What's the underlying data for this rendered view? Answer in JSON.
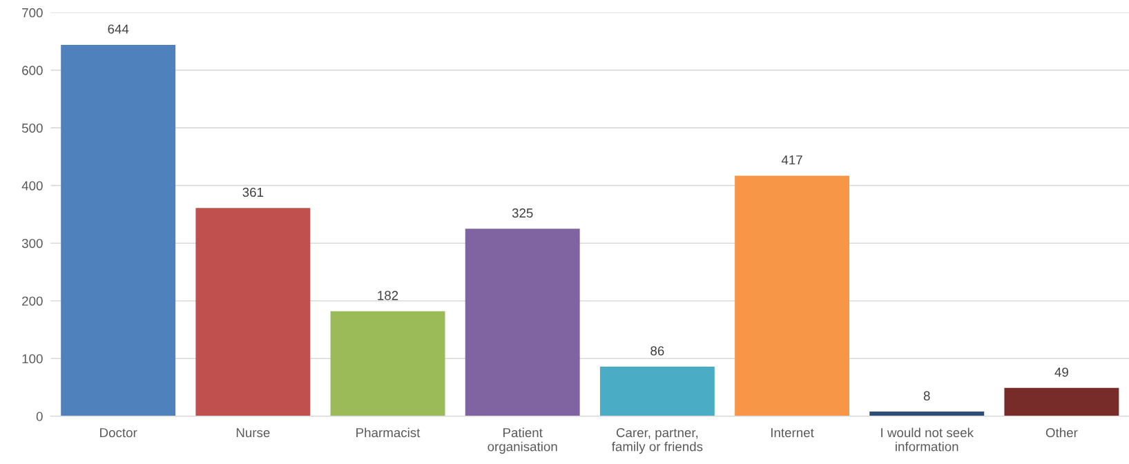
{
  "chart_data": {
    "type": "bar",
    "categories": [
      "Doctor",
      "Nurse",
      "Pharmacist",
      "Patient\norganisation",
      "Carer, partner,\nfamily or friends",
      "Internet",
      "I would not seek\ninformation",
      "Other"
    ],
    "values": [
      644,
      361,
      182,
      325,
      86,
      417,
      8,
      49
    ],
    "colors": [
      "#4f81bd",
      "#c0504d",
      "#9bbb59",
      "#8064a2",
      "#4bacc6",
      "#f79646",
      "#2c4d75",
      "#772c2a"
    ],
    "ylim": [
      0,
      700
    ],
    "yticks": [
      0,
      100,
      200,
      300,
      400,
      500,
      600,
      700
    ],
    "grid": "y",
    "data_labels": true
  }
}
